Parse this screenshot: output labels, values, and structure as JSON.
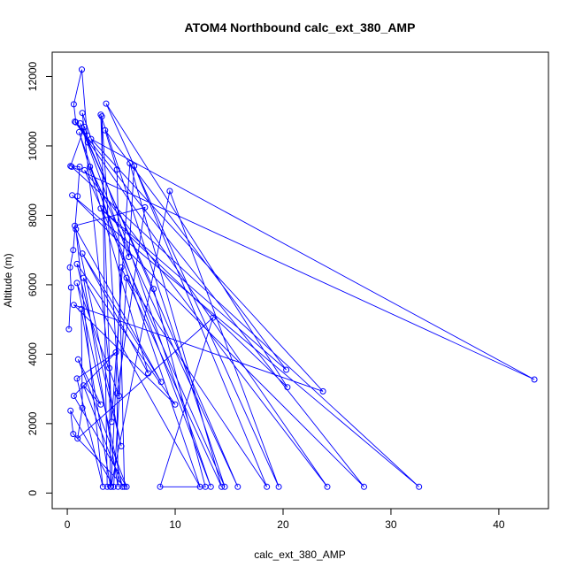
{
  "chart_data": {
    "type": "line",
    "title": "ATOM4 Northbound calc_ext_380_AMP",
    "xlabel": "calc_ext_380_AMP",
    "ylabel": "Altitude (m)",
    "xlim": [
      -1.4,
      44.6
    ],
    "ylim": [
      -450,
      12700
    ],
    "x_ticks": [
      0,
      10,
      20,
      30,
      40
    ],
    "y_ticks": [
      0,
      2000,
      4000,
      6000,
      8000,
      10000,
      12000
    ],
    "x_tick_labels": [
      "0",
      "10",
      "20",
      "30",
      "40"
    ],
    "y_tick_labels": [
      "0",
      "2000",
      "4000",
      "6000",
      "8000",
      "10000",
      "12000"
    ],
    "grid": false,
    "legend": "none",
    "colors": {
      "series": "#0000ff",
      "axis": "#000000"
    },
    "marker": "open-circle",
    "series": [
      {
        "points": [
          [
            0.15,
            4720
          ],
          [
            0.35,
            5920
          ],
          [
            0.25,
            6500
          ],
          [
            0.55,
            7000
          ],
          [
            0.95,
            8550
          ],
          [
            1.15,
            9400
          ],
          [
            0.3,
            9420
          ],
          [
            1.6,
            10550
          ],
          [
            1.85,
            10300
          ],
          [
            0.8,
            10680
          ],
          [
            0.6,
            11200
          ],
          [
            1.35,
            12200
          ],
          [
            1.9,
            10100
          ],
          [
            8.0,
            5880
          ],
          [
            12.8,
            180
          ],
          [
            8.6,
            180
          ],
          [
            13.5,
            5050
          ],
          [
            0.95,
            1570
          ],
          [
            1.4,
            2450
          ],
          [
            1.3,
            5300
          ],
          [
            4.0,
            180
          ],
          [
            3.9,
            3600
          ],
          [
            1.4,
            10950
          ],
          [
            13.3,
            180
          ],
          [
            2.1,
            9400
          ],
          [
            15.8,
            180
          ],
          [
            1.2,
            10650
          ],
          [
            5.7,
            6800
          ],
          [
            6.2,
            9420
          ],
          [
            18.5,
            180
          ],
          [
            5.5,
            6200
          ],
          [
            4.3,
            180
          ],
          [
            0.3,
            2370
          ],
          [
            0.55,
            1700
          ],
          [
            5.3,
            180
          ],
          [
            4.6,
            9320
          ],
          [
            3.5,
            10450
          ],
          [
            20.3,
            3550
          ],
          [
            3.1,
            8200
          ],
          [
            20.4,
            3050
          ],
          [
            3.6,
            11220
          ],
          [
            19.6,
            180
          ],
          [
            9.5,
            8700
          ],
          [
            4.05,
            180
          ],
          [
            5.0,
            6500
          ],
          [
            14.3,
            180
          ],
          [
            5.8,
            9500
          ],
          [
            4.1,
            2050
          ],
          [
            3.1,
            10900
          ],
          [
            14.6,
            180
          ],
          [
            1.6,
            9300
          ],
          [
            24.1,
            180
          ],
          [
            0.7,
            10700
          ],
          [
            27.5,
            180
          ],
          [
            0.45,
            8580
          ],
          [
            32.6,
            180
          ],
          [
            0.4,
            9400
          ],
          [
            43.3,
            3270
          ],
          [
            2.2,
            10200
          ],
          [
            23.7,
            2930
          ],
          [
            0.6,
            5420
          ],
          [
            10.0,
            2550
          ],
          [
            0.9,
            6600
          ],
          [
            5.0,
            1350
          ],
          [
            0.7,
            7700
          ],
          [
            7.2,
            8230
          ],
          [
            4.6,
            2870
          ],
          [
            4.7,
            180
          ],
          [
            1.5,
            6200
          ],
          [
            12.3,
            180
          ],
          [
            1.1,
            10400
          ],
          [
            7.5,
            3450
          ],
          [
            1.4,
            6900
          ],
          [
            8.7,
            3200
          ],
          [
            0.8,
            7600
          ],
          [
            3.3,
            180
          ],
          [
            0.9,
            3300
          ],
          [
            4.5,
            4050
          ],
          [
            0.6,
            2800
          ],
          [
            5.5,
            180
          ],
          [
            1.0,
            3850
          ],
          [
            3.1,
            2550
          ],
          [
            1.5,
            3100
          ],
          [
            5.1,
            180
          ],
          [
            0.9,
            6050
          ],
          [
            4.8,
            2800
          ],
          [
            3.2,
            10850
          ],
          [
            3.7,
            180
          ]
        ]
      }
    ]
  }
}
